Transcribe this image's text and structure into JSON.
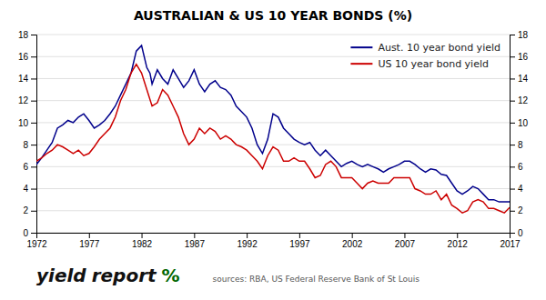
{
  "chart_data": {
    "type": "line",
    "title": "AUSTRALIAN & US 10 YEAR BONDS (%)",
    "xlim": [
      1972,
      2017
    ],
    "xticks": [
      1972,
      1977,
      1982,
      1987,
      1992,
      1997,
      2002,
      2007,
      2012,
      2017
    ],
    "ylim": [
      0,
      18
    ],
    "yticks": [
      0,
      2,
      4,
      6,
      8,
      10,
      12,
      14,
      16,
      18
    ],
    "y2lim": [
      0,
      18
    ],
    "y2ticks": [
      0,
      2,
      4,
      6,
      8,
      10,
      12,
      14,
      16,
      18
    ],
    "grid": true,
    "legend": "upper right",
    "annotations": [
      {
        "text": "yield"
      },
      {
        "text": "report"
      },
      {
        "text": "%",
        "color": "#006600"
      },
      {
        "text": "sources: RBA, US Federal Reserve Bank of St Louis"
      }
    ],
    "series": [
      {
        "name": "Aust. 10 year bond yield",
        "color": "#00008B",
        "x": [
          1972.0,
          1972.5,
          1973.0,
          1973.5,
          1974.0,
          1974.5,
          1975.0,
          1975.5,
          1976.0,
          1976.5,
          1977.0,
          1977.5,
          1978.0,
          1978.5,
          1979.0,
          1979.5,
          1980.0,
          1980.5,
          1981.0,
          1981.5,
          1982.0,
          1982.5,
          1982.8,
          1983.0,
          1983.5,
          1984.0,
          1984.5,
          1985.0,
          1985.5,
          1986.0,
          1986.5,
          1987.0,
          1987.5,
          1988.0,
          1988.5,
          1989.0,
          1989.5,
          1990.0,
          1990.5,
          1991.0,
          1991.5,
          1992.0,
          1992.5,
          1993.0,
          1993.5,
          1994.0,
          1994.5,
          1995.0,
          1995.5,
          1996.0,
          1996.5,
          1997.0,
          1997.5,
          1998.0,
          1998.5,
          1999.0,
          1999.5,
          2000.0,
          2000.5,
          2001.0,
          2001.5,
          2002.0,
          2002.5,
          2003.0,
          2003.5,
          2004.0,
          2004.5,
          2005.0,
          2005.5,
          2006.0,
          2006.5,
          2007.0,
          2007.5,
          2008.0,
          2008.5,
          2009.0,
          2009.5,
          2010.0,
          2010.5,
          2011.0,
          2011.5,
          2012.0,
          2012.5,
          2013.0,
          2013.5,
          2014.0,
          2014.5,
          2015.0,
          2015.5,
          2016.0,
          2016.5,
          2017.0
        ],
        "values": [
          6.2,
          6.8,
          7.5,
          8.2,
          9.5,
          9.8,
          10.2,
          10.0,
          10.5,
          10.8,
          10.2,
          9.5,
          9.8,
          10.2,
          10.8,
          11.5,
          12.5,
          13.5,
          14.5,
          16.5,
          17.0,
          15.0,
          14.5,
          13.5,
          14.8,
          14.0,
          13.5,
          14.8,
          14.0,
          13.2,
          13.8,
          14.8,
          13.5,
          12.8,
          13.5,
          13.8,
          13.2,
          13.0,
          12.5,
          11.5,
          11.0,
          10.5,
          9.5,
          8.0,
          7.2,
          8.5,
          10.8,
          10.5,
          9.5,
          9.0,
          8.5,
          8.2,
          8.0,
          8.2,
          7.5,
          7.0,
          7.5,
          7.0,
          6.5,
          6.0,
          6.3,
          6.5,
          6.2,
          6.0,
          6.2,
          6.0,
          5.8,
          5.5,
          5.8,
          6.0,
          6.2,
          6.5,
          6.5,
          6.2,
          5.8,
          5.5,
          5.8,
          5.7,
          5.3,
          5.2,
          4.5,
          3.8,
          3.5,
          3.8,
          4.2,
          4.0,
          3.5,
          3.0,
          3.0,
          2.8,
          2.8,
          2.8
        ]
      },
      {
        "name": "US 10 year bond yield",
        "color": "#CC0000",
        "x": [
          1972.0,
          1972.5,
          1973.0,
          1973.5,
          1974.0,
          1974.5,
          1975.0,
          1975.5,
          1976.0,
          1976.5,
          1977.0,
          1977.5,
          1978.0,
          1978.5,
          1979.0,
          1979.5,
          1980.0,
          1980.5,
          1981.0,
          1981.5,
          1982.0,
          1982.5,
          1983.0,
          1983.5,
          1984.0,
          1984.5,
          1985.0,
          1985.5,
          1986.0,
          1986.5,
          1987.0,
          1987.5,
          1988.0,
          1988.5,
          1989.0,
          1989.5,
          1990.0,
          1990.5,
          1991.0,
          1991.5,
          1992.0,
          1992.5,
          1993.0,
          1993.5,
          1994.0,
          1994.5,
          1995.0,
          1995.5,
          1996.0,
          1996.5,
          1997.0,
          1997.5,
          1998.0,
          1998.5,
          1999.0,
          1999.5,
          2000.0,
          2000.5,
          2001.0,
          2001.5,
          2002.0,
          2002.5,
          2003.0,
          2003.5,
          2004.0,
          2004.5,
          2005.0,
          2005.5,
          2006.0,
          2006.5,
          2007.0,
          2007.5,
          2008.0,
          2008.5,
          2009.0,
          2009.5,
          2010.0,
          2010.5,
          2011.0,
          2011.5,
          2012.0,
          2012.5,
          2013.0,
          2013.5,
          2014.0,
          2014.5,
          2015.0,
          2015.5,
          2016.0,
          2016.5,
          2017.0
        ],
        "values": [
          6.5,
          6.8,
          7.2,
          7.5,
          8.0,
          7.8,
          7.5,
          7.2,
          7.5,
          7.0,
          7.2,
          7.8,
          8.5,
          9.0,
          9.5,
          10.5,
          12.0,
          13.0,
          14.5,
          15.3,
          14.5,
          13.0,
          11.5,
          11.8,
          13.0,
          12.5,
          11.5,
          10.5,
          9.0,
          8.0,
          8.5,
          9.5,
          9.0,
          9.5,
          9.2,
          8.5,
          8.8,
          8.5,
          8.0,
          7.8,
          7.5,
          7.0,
          6.5,
          5.8,
          7.0,
          7.8,
          7.5,
          6.5,
          6.5,
          6.8,
          6.5,
          6.5,
          5.8,
          5.0,
          5.2,
          6.2,
          6.5,
          6.0,
          5.0,
          5.0,
          5.0,
          4.5,
          4.0,
          4.5,
          4.7,
          4.5,
          4.5,
          4.5,
          5.0,
          5.0,
          5.0,
          5.0,
          4.0,
          3.8,
          3.5,
          3.5,
          3.8,
          3.0,
          3.5,
          2.5,
          2.2,
          1.8,
          2.0,
          2.8,
          3.0,
          2.8,
          2.2,
          2.2,
          2.0,
          1.8,
          2.3
        ]
      }
    ]
  }
}
